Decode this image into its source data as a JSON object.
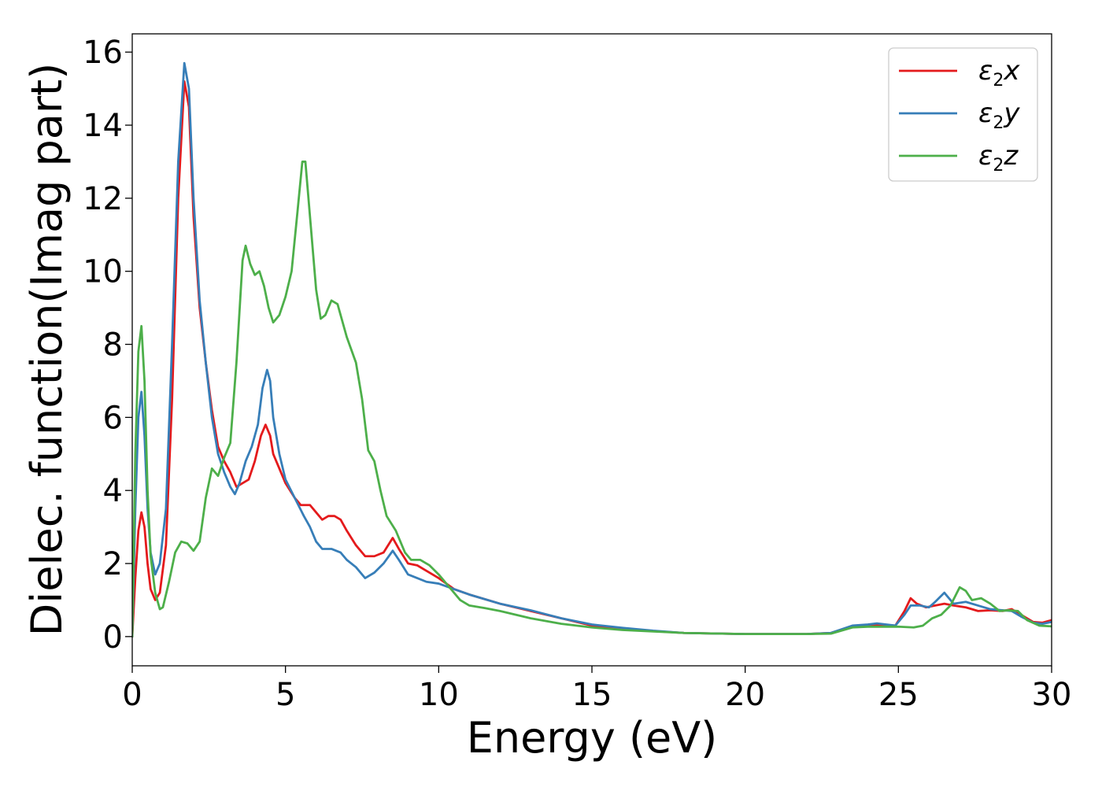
{
  "chart_data": {
    "type": "line",
    "title": "",
    "xlabel": "Energy (eV)",
    "ylabel": "Dielec. function(Imag part)",
    "xlim": [
      0,
      30
    ],
    "ylim": [
      -0.8,
      16.5
    ],
    "x_ticks": [
      0,
      5,
      10,
      15,
      20,
      25,
      30
    ],
    "y_ticks": [
      0,
      2,
      4,
      6,
      8,
      10,
      12,
      14,
      16
    ],
    "grid": false,
    "legend_position": "top-right",
    "series": [
      {
        "name": "ε2x",
        "legend_main": "ε",
        "legend_sub": "2",
        "legend_suffix": "x",
        "color": "#e41a1c",
        "points": [
          [
            0,
            0
          ],
          [
            0.1,
            1.6
          ],
          [
            0.2,
            2.9
          ],
          [
            0.3,
            3.4
          ],
          [
            0.4,
            3.0
          ],
          [
            0.5,
            2.0
          ],
          [
            0.6,
            1.3
          ],
          [
            0.75,
            1.0
          ],
          [
            0.9,
            1.2
          ],
          [
            1.1,
            2.5
          ],
          [
            1.3,
            6.5
          ],
          [
            1.5,
            12.0
          ],
          [
            1.7,
            15.2
          ],
          [
            1.85,
            14.5
          ],
          [
            2.0,
            11.5
          ],
          [
            2.2,
            9.0
          ],
          [
            2.4,
            7.5
          ],
          [
            2.6,
            6.2
          ],
          [
            2.8,
            5.2
          ],
          [
            3.0,
            4.8
          ],
          [
            3.2,
            4.5
          ],
          [
            3.4,
            4.1
          ],
          [
            3.6,
            4.2
          ],
          [
            3.8,
            4.3
          ],
          [
            4.0,
            4.8
          ],
          [
            4.2,
            5.5
          ],
          [
            4.35,
            5.8
          ],
          [
            4.5,
            5.5
          ],
          [
            4.6,
            5.0
          ],
          [
            4.8,
            4.6
          ],
          [
            5.0,
            4.2
          ],
          [
            5.3,
            3.8
          ],
          [
            5.5,
            3.6
          ],
          [
            5.8,
            3.6
          ],
          [
            6.0,
            3.4
          ],
          [
            6.2,
            3.2
          ],
          [
            6.4,
            3.3
          ],
          [
            6.6,
            3.3
          ],
          [
            6.8,
            3.2
          ],
          [
            7.0,
            2.9
          ],
          [
            7.3,
            2.5
          ],
          [
            7.6,
            2.2
          ],
          [
            7.9,
            2.2
          ],
          [
            8.2,
            2.3
          ],
          [
            8.5,
            2.7
          ],
          [
            8.7,
            2.4
          ],
          [
            9.0,
            2.0
          ],
          [
            9.3,
            1.95
          ],
          [
            9.6,
            1.8
          ],
          [
            10.0,
            1.6
          ],
          [
            10.5,
            1.3
          ],
          [
            11.0,
            1.15
          ],
          [
            12.0,
            0.9
          ],
          [
            13.0,
            0.7
          ],
          [
            14.0,
            0.5
          ],
          [
            15.0,
            0.3
          ],
          [
            16.0,
            0.2
          ],
          [
            17.0,
            0.15
          ],
          [
            18.0,
            0.1
          ],
          [
            20.0,
            0.07
          ],
          [
            22.0,
            0.07
          ],
          [
            22.8,
            0.1
          ],
          [
            23.5,
            0.28
          ],
          [
            24.0,
            0.3
          ],
          [
            24.3,
            0.33
          ],
          [
            24.9,
            0.3
          ],
          [
            25.2,
            0.7
          ],
          [
            25.4,
            1.05
          ],
          [
            25.6,
            0.9
          ],
          [
            25.9,
            0.8
          ],
          [
            26.2,
            0.85
          ],
          [
            26.5,
            0.9
          ],
          [
            26.8,
            0.85
          ],
          [
            27.2,
            0.8
          ],
          [
            27.6,
            0.7
          ],
          [
            28.0,
            0.72
          ],
          [
            28.4,
            0.7
          ],
          [
            28.7,
            0.75
          ],
          [
            29.0,
            0.6
          ],
          [
            29.4,
            0.4
          ],
          [
            29.7,
            0.38
          ],
          [
            30.0,
            0.45
          ]
        ]
      },
      {
        "name": "ε2y",
        "legend_main": "ε",
        "legend_sub": "2",
        "legend_suffix": "y",
        "color": "#377eb8",
        "points": [
          [
            0,
            0
          ],
          [
            0.1,
            3.5
          ],
          [
            0.2,
            6.0
          ],
          [
            0.3,
            6.7
          ],
          [
            0.4,
            5.5
          ],
          [
            0.5,
            3.5
          ],
          [
            0.6,
            2.3
          ],
          [
            0.75,
            1.7
          ],
          [
            0.9,
            2.0
          ],
          [
            1.1,
            3.5
          ],
          [
            1.3,
            8.0
          ],
          [
            1.5,
            13.0
          ],
          [
            1.7,
            15.7
          ],
          [
            1.85,
            15.0
          ],
          [
            2.0,
            12.0
          ],
          [
            2.2,
            9.2
          ],
          [
            2.4,
            7.5
          ],
          [
            2.6,
            6.0
          ],
          [
            2.8,
            5.0
          ],
          [
            3.0,
            4.5
          ],
          [
            3.2,
            4.1
          ],
          [
            3.35,
            3.9
          ],
          [
            3.5,
            4.2
          ],
          [
            3.7,
            4.8
          ],
          [
            3.9,
            5.2
          ],
          [
            4.1,
            5.8
          ],
          [
            4.25,
            6.8
          ],
          [
            4.4,
            7.3
          ],
          [
            4.5,
            7.0
          ],
          [
            4.6,
            6.0
          ],
          [
            4.8,
            5.0
          ],
          [
            5.0,
            4.3
          ],
          [
            5.3,
            3.8
          ],
          [
            5.6,
            3.3
          ],
          [
            5.8,
            3.0
          ],
          [
            6.0,
            2.6
          ],
          [
            6.2,
            2.4
          ],
          [
            6.5,
            2.4
          ],
          [
            6.8,
            2.3
          ],
          [
            7.0,
            2.1
          ],
          [
            7.3,
            1.9
          ],
          [
            7.6,
            1.6
          ],
          [
            7.9,
            1.75
          ],
          [
            8.2,
            2.0
          ],
          [
            8.5,
            2.35
          ],
          [
            8.7,
            2.1
          ],
          [
            9.0,
            1.7
          ],
          [
            9.3,
            1.6
          ],
          [
            9.6,
            1.5
          ],
          [
            10.0,
            1.45
          ],
          [
            10.5,
            1.3
          ],
          [
            11.0,
            1.15
          ],
          [
            12.0,
            0.9
          ],
          [
            13.0,
            0.72
          ],
          [
            14.0,
            0.5
          ],
          [
            15.0,
            0.33
          ],
          [
            16.0,
            0.24
          ],
          [
            17.0,
            0.16
          ],
          [
            18.0,
            0.1
          ],
          [
            20.0,
            0.07
          ],
          [
            22.0,
            0.07
          ],
          [
            22.8,
            0.1
          ],
          [
            23.5,
            0.3
          ],
          [
            24.0,
            0.33
          ],
          [
            24.3,
            0.36
          ],
          [
            24.9,
            0.3
          ],
          [
            25.2,
            0.6
          ],
          [
            25.4,
            0.85
          ],
          [
            25.7,
            0.85
          ],
          [
            26.0,
            0.8
          ],
          [
            26.2,
            0.95
          ],
          [
            26.5,
            1.2
          ],
          [
            26.8,
            0.9
          ],
          [
            27.2,
            0.95
          ],
          [
            27.6,
            0.85
          ],
          [
            28.0,
            0.75
          ],
          [
            28.4,
            0.72
          ],
          [
            28.7,
            0.7
          ],
          [
            29.0,
            0.55
          ],
          [
            29.4,
            0.38
          ],
          [
            29.7,
            0.35
          ],
          [
            30.0,
            0.4
          ]
        ]
      },
      {
        "name": "ε2z",
        "legend_main": "ε",
        "legend_sub": "2",
        "legend_suffix": "z",
        "color": "#4daf4a",
        "points": [
          [
            0,
            0
          ],
          [
            0.1,
            5.0
          ],
          [
            0.2,
            7.8
          ],
          [
            0.3,
            8.5
          ],
          [
            0.4,
            7.0
          ],
          [
            0.5,
            4.0
          ],
          [
            0.6,
            2.2
          ],
          [
            0.75,
            1.2
          ],
          [
            0.9,
            0.75
          ],
          [
            1.0,
            0.8
          ],
          [
            1.2,
            1.5
          ],
          [
            1.4,
            2.3
          ],
          [
            1.6,
            2.6
          ],
          [
            1.8,
            2.55
          ],
          [
            2.0,
            2.35
          ],
          [
            2.2,
            2.6
          ],
          [
            2.4,
            3.8
          ],
          [
            2.6,
            4.6
          ],
          [
            2.8,
            4.4
          ],
          [
            3.0,
            4.9
          ],
          [
            3.2,
            5.3
          ],
          [
            3.4,
            7.5
          ],
          [
            3.6,
            10.3
          ],
          [
            3.7,
            10.7
          ],
          [
            3.85,
            10.2
          ],
          [
            4.0,
            9.9
          ],
          [
            4.15,
            10.0
          ],
          [
            4.3,
            9.6
          ],
          [
            4.45,
            9.0
          ],
          [
            4.6,
            8.6
          ],
          [
            4.8,
            8.8
          ],
          [
            5.0,
            9.3
          ],
          [
            5.2,
            10.0
          ],
          [
            5.4,
            11.7
          ],
          [
            5.55,
            13.0
          ],
          [
            5.65,
            13.0
          ],
          [
            5.8,
            11.5
          ],
          [
            6.0,
            9.5
          ],
          [
            6.15,
            8.7
          ],
          [
            6.3,
            8.8
          ],
          [
            6.5,
            9.2
          ],
          [
            6.7,
            9.1
          ],
          [
            7.0,
            8.2
          ],
          [
            7.3,
            7.5
          ],
          [
            7.5,
            6.5
          ],
          [
            7.7,
            5.1
          ],
          [
            7.9,
            4.8
          ],
          [
            8.1,
            4.0
          ],
          [
            8.3,
            3.3
          ],
          [
            8.6,
            2.9
          ],
          [
            8.9,
            2.3
          ],
          [
            9.1,
            2.1
          ],
          [
            9.4,
            2.1
          ],
          [
            9.7,
            1.95
          ],
          [
            10.0,
            1.7
          ],
          [
            10.3,
            1.4
          ],
          [
            10.7,
            1.0
          ],
          [
            11.0,
            0.85
          ],
          [
            11.5,
            0.78
          ],
          [
            12.0,
            0.7
          ],
          [
            13.0,
            0.5
          ],
          [
            14.0,
            0.35
          ],
          [
            15.0,
            0.25
          ],
          [
            16.0,
            0.18
          ],
          [
            17.0,
            0.14
          ],
          [
            18.0,
            0.1
          ],
          [
            20.0,
            0.07
          ],
          [
            22.0,
            0.07
          ],
          [
            22.8,
            0.08
          ],
          [
            23.5,
            0.25
          ],
          [
            24.0,
            0.27
          ],
          [
            24.5,
            0.27
          ],
          [
            25.0,
            0.27
          ],
          [
            25.5,
            0.25
          ],
          [
            25.8,
            0.3
          ],
          [
            26.1,
            0.5
          ],
          [
            26.4,
            0.6
          ],
          [
            26.7,
            0.85
          ],
          [
            27.0,
            1.35
          ],
          [
            27.2,
            1.25
          ],
          [
            27.4,
            1.0
          ],
          [
            27.7,
            1.05
          ],
          [
            28.0,
            0.9
          ],
          [
            28.3,
            0.7
          ],
          [
            28.6,
            0.72
          ],
          [
            28.9,
            0.7
          ],
          [
            29.2,
            0.45
          ],
          [
            29.6,
            0.3
          ],
          [
            30.0,
            0.28
          ]
        ]
      }
    ]
  }
}
